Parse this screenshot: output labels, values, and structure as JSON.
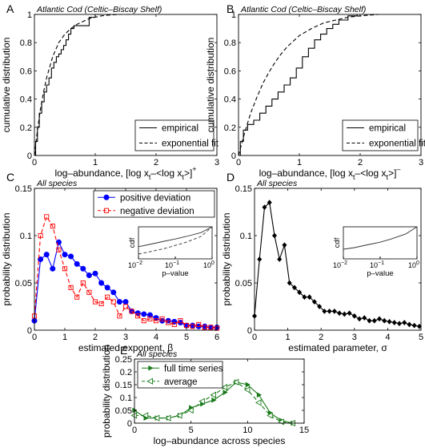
{
  "chart_data": [
    {
      "id": "A",
      "type": "line",
      "panel_label": "A",
      "annotation": "Atlantic Cod (Celtic–Biscay Shelf)",
      "ylabel": "cumulative distribution",
      "xlabel": "log–abundance, [log x_t–<log x_t>]^+",
      "xlabel_main": "log–abundance, [log x",
      "xlabel_sub": "t",
      "xlabel_mid": "–<log x",
      "xlabel_sub2": "t",
      "xlabel_end": ">]",
      "xlabel_sup": "+",
      "xlim": [
        0,
        3
      ],
      "ylim": [
        0,
        1
      ],
      "xticks": [
        "0",
        "1",
        "2",
        "3"
      ],
      "yticks": [
        "0",
        "0.2",
        "0.4",
        "0.6",
        "0.8",
        "1"
      ],
      "legend_position": "bottom-right",
      "series": [
        {
          "name": "empirical",
          "style": "solid",
          "step": true,
          "x": [
            0,
            0.02,
            0.05,
            0.08,
            0.12,
            0.16,
            0.2,
            0.24,
            0.28,
            0.32,
            0.36,
            0.4,
            0.44,
            0.48,
            0.52,
            0.56,
            0.6,
            0.65,
            0.72,
            0.8,
            0.9,
            1.0,
            1.1
          ],
          "y": [
            0,
            0.1,
            0.2,
            0.3,
            0.38,
            0.45,
            0.5,
            0.55,
            0.62,
            0.66,
            0.7,
            0.72,
            0.75,
            0.78,
            0.82,
            0.86,
            0.9,
            0.92,
            0.92,
            0.92,
            0.98,
            1.0,
            1.0
          ]
        },
        {
          "name": "exponential fit",
          "style": "dashed",
          "x": [
            0,
            0.05,
            0.1,
            0.15,
            0.2,
            0.3,
            0.4,
            0.5,
            0.6,
            0.7,
            0.8,
            0.9,
            1.0,
            1.1,
            1.2,
            1.4,
            1.6
          ],
          "y": [
            0,
            0.18,
            0.33,
            0.45,
            0.55,
            0.7,
            0.8,
            0.86,
            0.9,
            0.93,
            0.95,
            0.97,
            0.98,
            0.99,
            0.995,
            1.0,
            1.0
          ]
        }
      ]
    },
    {
      "id": "B",
      "type": "line",
      "panel_label": "B",
      "annotation": "Atlantic Cod (Celtic–Biscay Shelf)",
      "ylabel": "cumulative distribution",
      "xlabel": "log–abundance, [log x_t–<log x_t>]^–",
      "xlabel_main": "log–abundance, [log x",
      "xlabel_sub": "t",
      "xlabel_mid": "–<log x",
      "xlabel_sub2": "t",
      "xlabel_end": ">]",
      "xlabel_sup": "–",
      "xlim": [
        0,
        3
      ],
      "ylim": [
        0,
        1
      ],
      "xticks": [
        "0",
        "1",
        "2",
        "3"
      ],
      "yticks": [
        "0",
        "0.2",
        "0.4",
        "0.6",
        "0.8",
        "1"
      ],
      "legend_position": "bottom-right",
      "series": [
        {
          "name": "empirical",
          "style": "solid",
          "step": true,
          "x": [
            0,
            0.03,
            0.08,
            0.15,
            0.25,
            0.35,
            0.45,
            0.55,
            0.65,
            0.75,
            0.85,
            0.95,
            1.05,
            1.15,
            1.25,
            1.35,
            1.45,
            1.55,
            1.65,
            1.8,
            1.95
          ],
          "y": [
            0,
            0.1,
            0.18,
            0.22,
            0.25,
            0.3,
            0.35,
            0.4,
            0.45,
            0.5,
            0.55,
            0.62,
            0.7,
            0.76,
            0.82,
            0.86,
            0.9,
            0.93,
            0.96,
            0.99,
            1.0
          ]
        },
        {
          "name": "exponential fit",
          "style": "dashed",
          "x": [
            0,
            0.1,
            0.2,
            0.3,
            0.4,
            0.5,
            0.6,
            0.7,
            0.8,
            0.9,
            1.0,
            1.2,
            1.4,
            1.6,
            1.8,
            2.0,
            2.3
          ],
          "y": [
            0,
            0.16,
            0.3,
            0.41,
            0.51,
            0.59,
            0.66,
            0.72,
            0.77,
            0.81,
            0.85,
            0.9,
            0.94,
            0.96,
            0.98,
            0.99,
            1.0
          ]
        }
      ]
    },
    {
      "id": "C",
      "type": "line",
      "panel_label": "C",
      "annotation": "All species",
      "ylabel": "probability distribution",
      "xlabel": "estimated exponent, β",
      "xlim": [
        0,
        6
      ],
      "ylim": [
        0,
        0.15
      ],
      "xticks": [
        "0",
        "1",
        "2",
        "3",
        "4",
        "5",
        "6"
      ],
      "yticks": [
        "0",
        "0.05",
        "0.1",
        "0.15"
      ],
      "legend_position": "top-right",
      "series": [
        {
          "name": "positive deviation",
          "style": "solid",
          "color": "#0000ff",
          "marker": "filled-circle",
          "x": [
            0.0,
            0.2,
            0.4,
            0.6,
            0.8,
            1.0,
            1.2,
            1.4,
            1.6,
            1.8,
            2.0,
            2.2,
            2.4,
            2.6,
            2.8,
            3.0,
            3.2,
            3.4,
            3.6,
            3.8,
            4.0,
            4.2,
            4.4,
            4.6,
            4.8,
            5.0,
            5.2,
            5.4,
            5.6,
            5.8,
            6.0
          ],
          "y": [
            0.01,
            0.075,
            0.08,
            0.065,
            0.093,
            0.08,
            0.078,
            0.07,
            0.065,
            0.058,
            0.06,
            0.05,
            0.045,
            0.04,
            0.03,
            0.03,
            0.02,
            0.018,
            0.017,
            0.016,
            0.013,
            0.01,
            0.01,
            0.009,
            0.008,
            0.005,
            0.005,
            0.004,
            0.004,
            0.003,
            0.003
          ]
        },
        {
          "name": "negative deviation",
          "style": "dashed",
          "color": "#ff0000",
          "marker": "open-square",
          "x": [
            0.0,
            0.2,
            0.4,
            0.6,
            0.8,
            1.0,
            1.2,
            1.4,
            1.6,
            1.8,
            2.0,
            2.2,
            2.4,
            2.6,
            2.8,
            3.0,
            3.2,
            3.4,
            3.6,
            3.8,
            4.0,
            4.2,
            4.4,
            4.6,
            4.8,
            5.0,
            5.2,
            5.4,
            5.6,
            5.8,
            6.0
          ],
          "y": [
            0.015,
            0.1,
            0.12,
            0.11,
            0.085,
            0.065,
            0.045,
            0.035,
            0.05,
            0.04,
            0.03,
            0.028,
            0.035,
            0.03,
            0.015,
            0.025,
            0.02,
            0.015,
            0.01,
            0.012,
            0.01,
            0.012,
            0.008,
            0.006,
            0.01,
            0.005,
            0.004,
            0.006,
            0.003,
            0.003,
            0.002
          ]
        }
      ],
      "inset": {
        "type": "line",
        "xscale": "log",
        "xlabel": "p–value",
        "ylabel": "cdf",
        "xlim": [
          0.01,
          1
        ],
        "ylim": [
          0,
          1
        ],
        "xticks": [
          {
            "base": "10",
            "exp": "−2"
          },
          {
            "base": "10",
            "exp": "−1"
          },
          {
            "base": "10",
            "exp": "0"
          }
        ],
        "series": [
          {
            "style": "solid",
            "x": [
              0.01,
              0.02,
              0.05,
              0.1,
              0.2,
              0.5,
              1.0
            ],
            "y": [
              0.38,
              0.45,
              0.55,
              0.62,
              0.7,
              0.82,
              1.0
            ]
          },
          {
            "style": "dashed",
            "x": [
              0.01,
              0.02,
              0.05,
              0.1,
              0.2,
              0.5,
              1.0
            ],
            "y": [
              0.15,
              0.22,
              0.32,
              0.42,
              0.52,
              0.7,
              1.0
            ]
          }
        ]
      }
    },
    {
      "id": "D",
      "type": "line",
      "panel_label": "D",
      "annotation": "All species",
      "ylabel": "probability distribution",
      "xlabel": "estimated parameter, σ",
      "xlim": [
        0,
        5
      ],
      "ylim": [
        0,
        0.15
      ],
      "xticks": [
        "0",
        "1",
        "2",
        "3",
        "4",
        "5"
      ],
      "yticks": [
        "0",
        "0.05",
        "0.1",
        "0.15"
      ],
      "series": [
        {
          "style": "solid",
          "color": "#000000",
          "marker": "filled-diamond",
          "x": [
            0.0,
            0.15,
            0.3,
            0.45,
            0.6,
            0.75,
            0.9,
            1.05,
            1.2,
            1.35,
            1.5,
            1.65,
            1.8,
            1.95,
            2.1,
            2.25,
            2.4,
            2.55,
            2.7,
            2.85,
            3.0,
            3.15,
            3.3,
            3.45,
            3.6,
            3.75,
            3.9,
            4.05,
            4.2,
            4.35,
            4.5,
            4.65,
            4.8,
            4.95
          ],
          "y": [
            0.015,
            0.075,
            0.13,
            0.135,
            0.1,
            0.075,
            0.09,
            0.05,
            0.045,
            0.04,
            0.035,
            0.035,
            0.03,
            0.025,
            0.02,
            0.02,
            0.02,
            0.018,
            0.017,
            0.018,
            0.015,
            0.012,
            0.013,
            0.01,
            0.01,
            0.012,
            0.01,
            0.009,
            0.008,
            0.007,
            0.008,
            0.006,
            0.005,
            0.004
          ]
        }
      ],
      "inset": {
        "type": "line",
        "xscale": "log",
        "xlabel": "p–value",
        "ylabel": "cdf",
        "xlim": [
          0.01,
          1
        ],
        "ylim": [
          0,
          1
        ],
        "xticks": [
          {
            "base": "10",
            "exp": "−2"
          },
          {
            "base": "10",
            "exp": "−1"
          },
          {
            "base": "10",
            "exp": "0"
          }
        ],
        "series": [
          {
            "style": "solid",
            "x": [
              0.01,
              0.02,
              0.05,
              0.1,
              0.2,
              0.5,
              1.0
            ],
            "y": [
              0.3,
              0.35,
              0.45,
              0.52,
              0.62,
              0.78,
              1.0
            ]
          }
        ]
      }
    },
    {
      "id": "E",
      "type": "line",
      "panel_label": "E",
      "annotation": "All species",
      "ylabel": "probability distribution",
      "xlabel": "log–abundance across species",
      "xlim": [
        0,
        15
      ],
      "ylim": [
        0,
        0.25
      ],
      "xticks": [
        "0",
        "5",
        "10",
        "15"
      ],
      "yticks": [
        "0",
        "0.05",
        "0.1",
        "0.15",
        "0.2",
        "0.25"
      ],
      "legend_position": "top-left",
      "series": [
        {
          "name": "full time series",
          "style": "solid",
          "color": "#1a7a1a",
          "marker": "filled-triangle-right",
          "x": [
            0,
            1,
            2,
            3,
            4,
            5,
            6,
            7,
            8,
            9,
            10,
            11,
            12,
            13,
            14
          ],
          "y": [
            0.05,
            0.02,
            0.02,
            0.02,
            0.03,
            0.06,
            0.075,
            0.09,
            0.12,
            0.16,
            0.15,
            0.11,
            0.04,
            0.01,
            0.0
          ]
        },
        {
          "name": "average",
          "style": "dashed",
          "color": "#1a7a1a",
          "marker": "open-triangle-left",
          "x": [
            0,
            1,
            2,
            3,
            4,
            5,
            6,
            7,
            8,
            9,
            10,
            11,
            12,
            13,
            14
          ],
          "y": [
            0.03,
            0.03,
            0.02,
            0.02,
            0.03,
            0.05,
            0.085,
            0.11,
            0.14,
            0.16,
            0.13,
            0.08,
            0.03,
            0.005,
            0.0
          ]
        }
      ]
    }
  ]
}
